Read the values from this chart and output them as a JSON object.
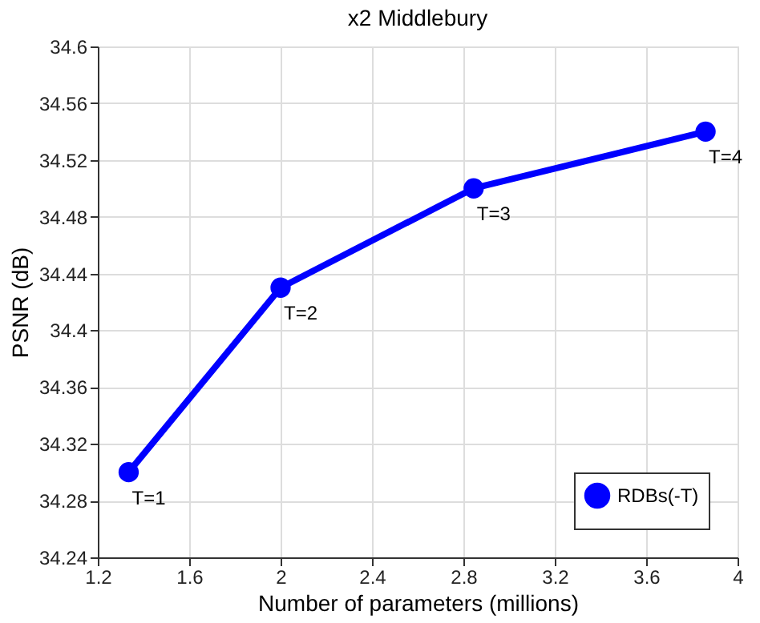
{
  "chart_data": {
    "type": "line",
    "title": "x2 Middlebury",
    "xlabel": "Number of parameters (millions)",
    "ylabel": "PSNR (dB)",
    "x": [
      1.335,
      2.0,
      2.845,
      3.86
    ],
    "series": [
      {
        "name": "RDBs(-T)",
        "color": "#0000ff",
        "values": [
          34.3,
          34.43,
          34.5,
          34.54
        ]
      }
    ],
    "xlim": [
      1.2,
      4
    ],
    "xticks": [
      1.2,
      1.6,
      2,
      2.4,
      2.8,
      3.2,
      3.6,
      4
    ],
    "ylim": [
      34.24,
      34.6
    ],
    "yticks": [
      34.24,
      34.28,
      34.32,
      34.36,
      34.4,
      34.44,
      34.48,
      34.52,
      34.56,
      34.6
    ],
    "grid": true,
    "legend": "bottom right",
    "marker": "circle",
    "line_style": "solid",
    "annotations": [
      {
        "text": "T=1",
        "x": 1.335,
        "y": 34.3
      },
      {
        "text": "T=2",
        "x": 2.0,
        "y": 34.43
      },
      {
        "text": "T=3",
        "x": 2.845,
        "y": 34.5
      },
      {
        "text": "T=4",
        "x": 3.86,
        "y": 34.54
      }
    ]
  }
}
